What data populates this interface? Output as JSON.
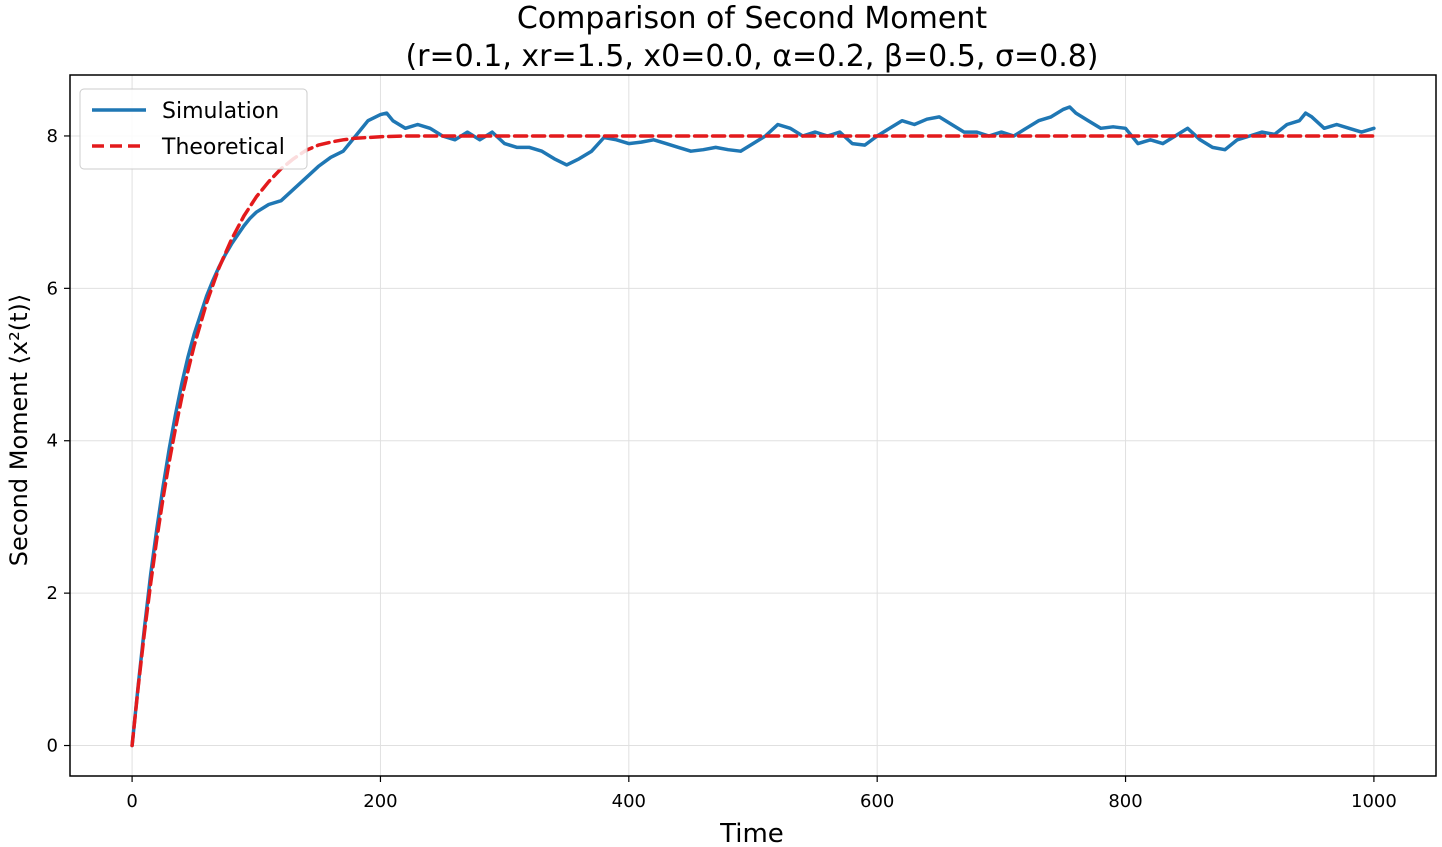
{
  "chart_data": {
    "type": "line",
    "title": "Comparison of Second Moment",
    "subtitle": "(r=0.1, xr=1.5, x0=0.0, α=0.2, β=0.5, σ=0.8)",
    "xlabel": "Time",
    "ylabel": "Second Moment ⟨x²(t)⟩",
    "xlim": [
      -50,
      1050
    ],
    "ylim": [
      -0.4,
      8.8
    ],
    "xticks": [
      0,
      200,
      400,
      600,
      800,
      1000
    ],
    "yticks": [
      0,
      2,
      4,
      6,
      8
    ],
    "grid": true,
    "legend_position": "top-left",
    "series": [
      {
        "name": "Simulation",
        "color": "#1f77b4",
        "style": "solid",
        "x": [
          0,
          5,
          10,
          15,
          20,
          25,
          30,
          35,
          40,
          45,
          50,
          55,
          60,
          65,
          70,
          75,
          80,
          85,
          90,
          95,
          100,
          110,
          120,
          130,
          140,
          150,
          160,
          170,
          180,
          190,
          200,
          205,
          210,
          220,
          230,
          240,
          250,
          260,
          270,
          280,
          290,
          300,
          310,
          320,
          330,
          340,
          350,
          360,
          370,
          380,
          390,
          400,
          410,
          420,
          430,
          440,
          450,
          460,
          470,
          480,
          490,
          500,
          510,
          520,
          530,
          540,
          550,
          560,
          570,
          580,
          590,
          600,
          610,
          620,
          630,
          640,
          650,
          660,
          670,
          680,
          690,
          700,
          710,
          720,
          730,
          740,
          750,
          755,
          760,
          770,
          780,
          790,
          800,
          810,
          820,
          830,
          840,
          850,
          860,
          870,
          880,
          890,
          900,
          910,
          920,
          930,
          940,
          945,
          950,
          960,
          970,
          980,
          990,
          1000
        ],
        "y": [
          0.0,
          0.8,
          1.55,
          2.25,
          2.85,
          3.4,
          3.9,
          4.35,
          4.75,
          5.1,
          5.4,
          5.65,
          5.9,
          6.1,
          6.28,
          6.44,
          6.58,
          6.7,
          6.82,
          6.92,
          7.0,
          7.1,
          7.15,
          7.3,
          7.45,
          7.6,
          7.72,
          7.8,
          8.0,
          8.2,
          8.28,
          8.3,
          8.2,
          8.1,
          8.15,
          8.1,
          8.0,
          7.95,
          8.05,
          7.95,
          8.05,
          7.9,
          7.85,
          7.85,
          7.8,
          7.7,
          7.62,
          7.7,
          7.8,
          7.98,
          7.95,
          7.9,
          7.92,
          7.95,
          7.9,
          7.85,
          7.8,
          7.82,
          7.85,
          7.82,
          7.8,
          7.9,
          8.0,
          8.15,
          8.1,
          8.0,
          8.05,
          8.0,
          8.05,
          7.9,
          7.88,
          8.0,
          8.1,
          8.2,
          8.15,
          8.22,
          8.25,
          8.15,
          8.05,
          8.05,
          8.0,
          8.05,
          8.0,
          8.1,
          8.2,
          8.25,
          8.35,
          8.38,
          8.3,
          8.2,
          8.1,
          8.12,
          8.1,
          7.9,
          7.95,
          7.9,
          8.0,
          8.1,
          7.95,
          7.85,
          7.82,
          7.95,
          8.0,
          8.05,
          8.02,
          8.15,
          8.2,
          8.3,
          8.25,
          8.1,
          8.15,
          8.1,
          8.05,
          8.1
        ]
      },
      {
        "name": "Theoretical",
        "color": "#e31a1c",
        "style": "dashed",
        "x": [
          0,
          5,
          10,
          15,
          20,
          25,
          30,
          35,
          40,
          45,
          50,
          60,
          70,
          80,
          90,
          100,
          110,
          120,
          130,
          140,
          150,
          160,
          170,
          180,
          190,
          200,
          220,
          240,
          260,
          280,
          300,
          350,
          400,
          500,
          600,
          700,
          800,
          900,
          1000
        ],
        "y": [
          0.0,
          0.78,
          1.49,
          2.13,
          2.72,
          3.25,
          3.73,
          4.17,
          4.57,
          4.92,
          5.25,
          5.81,
          6.27,
          6.64,
          6.95,
          7.2,
          7.4,
          7.57,
          7.7,
          7.81,
          7.88,
          7.92,
          7.95,
          7.97,
          7.98,
          7.99,
          8.0,
          8.0,
          8.0,
          8.0,
          8.0,
          8.0,
          8.0,
          8.0,
          8.0,
          8.0,
          8.0,
          8.0,
          8.0
        ]
      }
    ]
  }
}
